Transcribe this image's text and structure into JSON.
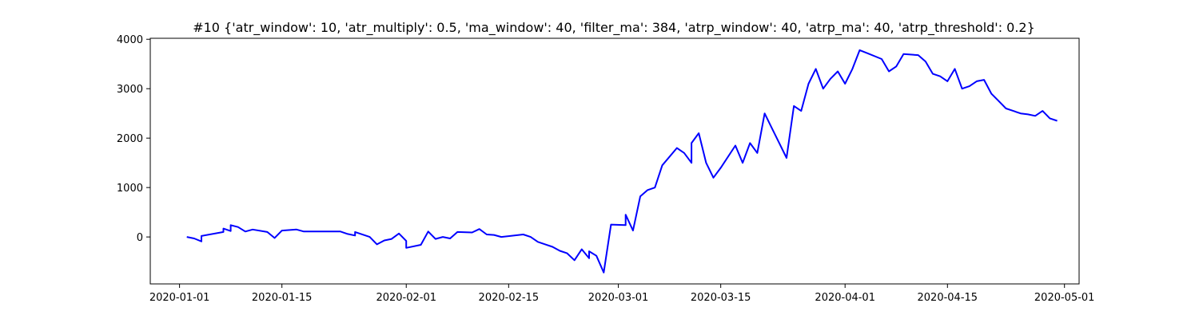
{
  "chart_data": {
    "type": "line",
    "title": "#10 {'atr_window': 10, 'atr_multiply': 0.5, 'ma_window': 40, 'filter_ma': 384, 'atrp_window': 40, 'atrp_ma': 40, 'atrp_threshold': 0.2}",
    "xlabel": "",
    "ylabel": "",
    "grid": false,
    "legend": "none",
    "line_color": "#0000ff",
    "xlim": [
      "2019-12-28",
      "2020-05-03"
    ],
    "ylim": [
      -950,
      4020
    ],
    "x_ticks": [
      {
        "date": "2020-01-01",
        "label": "2020-01-01"
      },
      {
        "date": "2020-01-15",
        "label": "2020-01-15"
      },
      {
        "date": "2020-02-01",
        "label": "2020-02-01"
      },
      {
        "date": "2020-02-15",
        "label": "2020-02-15"
      },
      {
        "date": "2020-03-01",
        "label": "2020-03-01"
      },
      {
        "date": "2020-03-15",
        "label": "2020-03-15"
      },
      {
        "date": "2020-04-01",
        "label": "2020-04-01"
      },
      {
        "date": "2020-04-15",
        "label": "2020-04-15"
      },
      {
        "date": "2020-05-01",
        "label": "2020-05-01"
      }
    ],
    "y_ticks": [
      {
        "value": 0,
        "label": "0"
      },
      {
        "value": 1000,
        "label": "1000"
      },
      {
        "value": 2000,
        "label": "2000"
      },
      {
        "value": 3000,
        "label": "3000"
      },
      {
        "value": 4000,
        "label": "4000"
      }
    ],
    "series": [
      {
        "points": [
          [
            "2020-01-02",
            0
          ],
          [
            "2020-01-03",
            -30
          ],
          [
            "2020-01-04",
            -90
          ],
          [
            "2020-01-04",
            20
          ],
          [
            "2020-01-07",
            100
          ],
          [
            "2020-01-07",
            170
          ],
          [
            "2020-01-08",
            120
          ],
          [
            "2020-01-08",
            240
          ],
          [
            "2020-01-09",
            200
          ],
          [
            "2020-01-10",
            110
          ],
          [
            "2020-01-11",
            150
          ],
          [
            "2020-01-13",
            100
          ],
          [
            "2020-01-14",
            -20
          ],
          [
            "2020-01-15",
            130
          ],
          [
            "2020-01-17",
            150
          ],
          [
            "2020-01-18",
            110
          ],
          [
            "2020-01-23",
            110
          ],
          [
            "2020-01-24",
            60
          ],
          [
            "2020-01-25",
            30
          ],
          [
            "2020-01-25",
            100
          ],
          [
            "2020-01-27",
            0
          ],
          [
            "2020-01-28",
            -150
          ],
          [
            "2020-01-29",
            -70
          ],
          [
            "2020-01-30",
            -40
          ],
          [
            "2020-01-31",
            70
          ],
          [
            "2020-02-01",
            -80
          ],
          [
            "2020-02-01",
            -220
          ],
          [
            "2020-02-03",
            -160
          ],
          [
            "2020-02-04",
            110
          ],
          [
            "2020-02-05",
            -40
          ],
          [
            "2020-02-06",
            0
          ],
          [
            "2020-02-07",
            -30
          ],
          [
            "2020-02-08",
            100
          ],
          [
            "2020-02-10",
            90
          ],
          [
            "2020-02-11",
            160
          ],
          [
            "2020-02-12",
            50
          ],
          [
            "2020-02-13",
            40
          ],
          [
            "2020-02-14",
            0
          ],
          [
            "2020-02-17",
            50
          ],
          [
            "2020-02-18",
            0
          ],
          [
            "2020-02-19",
            -100
          ],
          [
            "2020-02-20",
            -150
          ],
          [
            "2020-02-21",
            -200
          ],
          [
            "2020-02-22",
            -280
          ],
          [
            "2020-02-23",
            -330
          ],
          [
            "2020-02-24",
            -470
          ],
          [
            "2020-02-25",
            -250
          ],
          [
            "2020-02-26",
            -430
          ],
          [
            "2020-02-26",
            -290
          ],
          [
            "2020-02-27",
            -380
          ],
          [
            "2020-02-28",
            -720
          ],
          [
            "2020-02-29",
            250
          ],
          [
            "2020-03-02",
            240
          ],
          [
            "2020-03-02",
            450
          ],
          [
            "2020-03-03",
            130
          ],
          [
            "2020-03-04",
            820
          ],
          [
            "2020-03-05",
            950
          ],
          [
            "2020-03-06",
            1000
          ],
          [
            "2020-03-07",
            1450
          ],
          [
            "2020-03-09",
            1800
          ],
          [
            "2020-03-10",
            1700
          ],
          [
            "2020-03-11",
            1500
          ],
          [
            "2020-03-11",
            1900
          ],
          [
            "2020-03-12",
            2100
          ],
          [
            "2020-03-13",
            1500
          ],
          [
            "2020-03-14",
            1200
          ],
          [
            "2020-03-15",
            1400
          ],
          [
            "2020-03-17",
            1850
          ],
          [
            "2020-03-18",
            1500
          ],
          [
            "2020-03-19",
            1900
          ],
          [
            "2020-03-20",
            1700
          ],
          [
            "2020-03-21",
            2500
          ],
          [
            "2020-03-22",
            2200
          ],
          [
            "2020-03-23",
            1900
          ],
          [
            "2020-03-24",
            1600
          ],
          [
            "2020-03-25",
            2650
          ],
          [
            "2020-03-26",
            2550
          ],
          [
            "2020-03-27",
            3100
          ],
          [
            "2020-03-28",
            3400
          ],
          [
            "2020-03-29",
            3000
          ],
          [
            "2020-03-30",
            3200
          ],
          [
            "2020-03-31",
            3350
          ],
          [
            "2020-04-01",
            3100
          ],
          [
            "2020-04-02",
            3400
          ],
          [
            "2020-04-03",
            3780
          ],
          [
            "2020-04-04",
            3720
          ],
          [
            "2020-04-06",
            3600
          ],
          [
            "2020-04-07",
            3350
          ],
          [
            "2020-04-08",
            3450
          ],
          [
            "2020-04-09",
            3700
          ],
          [
            "2020-04-11",
            3680
          ],
          [
            "2020-04-12",
            3550
          ],
          [
            "2020-04-13",
            3300
          ],
          [
            "2020-04-14",
            3250
          ],
          [
            "2020-04-15",
            3150
          ],
          [
            "2020-04-16",
            3400
          ],
          [
            "2020-04-17",
            3000
          ],
          [
            "2020-04-18",
            3050
          ],
          [
            "2020-04-19",
            3150
          ],
          [
            "2020-04-20",
            3180
          ],
          [
            "2020-04-21",
            2900
          ],
          [
            "2020-04-22",
            2750
          ],
          [
            "2020-04-23",
            2600
          ],
          [
            "2020-04-24",
            2550
          ],
          [
            "2020-04-25",
            2500
          ],
          [
            "2020-04-26",
            2480
          ],
          [
            "2020-04-27",
            2450
          ],
          [
            "2020-04-28",
            2550
          ],
          [
            "2020-04-29",
            2400
          ],
          [
            "2020-04-30",
            2350
          ]
        ]
      }
    ]
  }
}
